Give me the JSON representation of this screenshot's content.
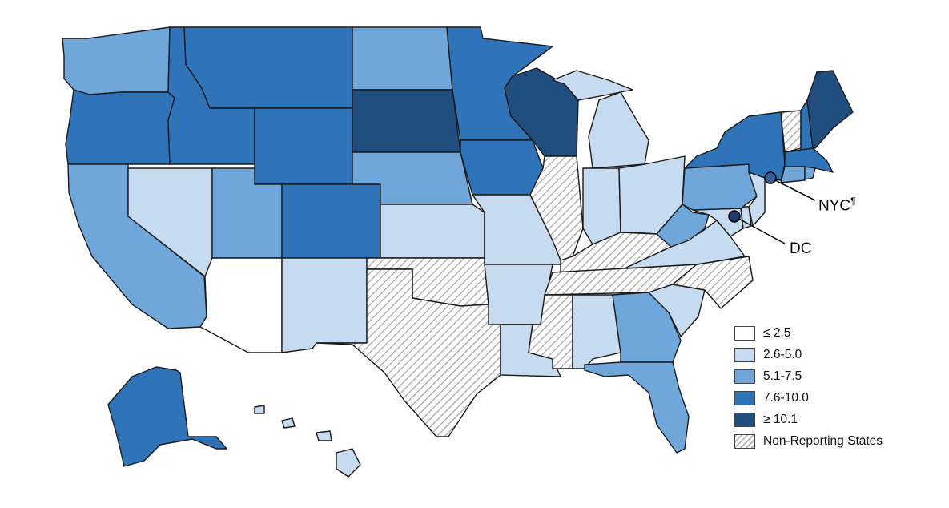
{
  "colors": {
    "le_2_5": "#ffffff",
    "c2_6_5_0": "#c6dbef",
    "c5_1_7_5": "#6fa7da",
    "c7_6_10_0": "#2f74b8",
    "ge_10_1": "#1f4e7f",
    "non_reporting": "hatch"
  },
  "legend": [
    {
      "key": "le_2_5",
      "label": "≤ 2.5"
    },
    {
      "key": "c2_6_5_0",
      "label": "2.6-5.0"
    },
    {
      "key": "c5_1_7_5",
      "label": "5.1-7.5"
    },
    {
      "key": "c7_6_10_0",
      "label": "7.6-10.0"
    },
    {
      "key": "ge_10_1",
      "label": "≥ 10.1"
    },
    {
      "key": "non_reporting",
      "label": "Non-Reporting States"
    }
  ],
  "callouts": {
    "nyc": {
      "label": "NYC",
      "superscript": "¶"
    },
    "dc": {
      "label": "DC"
    }
  }
}
